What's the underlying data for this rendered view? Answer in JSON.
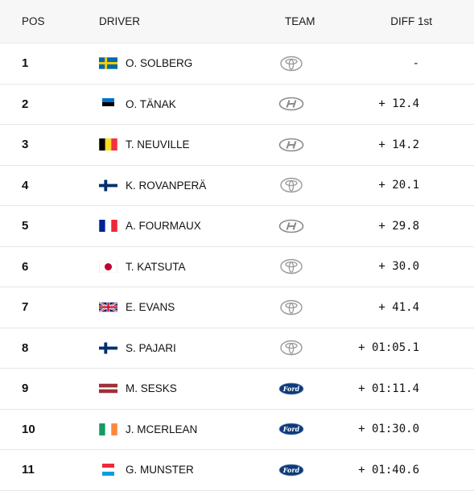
{
  "header": {
    "pos": "POS",
    "driver": "DRIVER",
    "team": "TEAM",
    "diff": "DIFF 1st"
  },
  "rows": [
    {
      "pos": "1",
      "driver": "O. SOLBERG",
      "flag": "sweden",
      "team": "toyota",
      "diff": "-"
    },
    {
      "pos": "2",
      "driver": "O. TÄNAK",
      "flag": "estonia",
      "team": "hyundai",
      "diff": "+ 12.4"
    },
    {
      "pos": "3",
      "driver": "T. NEUVILLE",
      "flag": "belgium",
      "team": "hyundai",
      "diff": "+ 14.2"
    },
    {
      "pos": "4",
      "driver": "K. ROVANPERÄ",
      "flag": "finland",
      "team": "toyota",
      "diff": "+ 20.1"
    },
    {
      "pos": "5",
      "driver": "A. FOURMAUX",
      "flag": "france",
      "team": "hyundai",
      "diff": "+ 29.8"
    },
    {
      "pos": "6",
      "driver": "T. KATSUTA",
      "flag": "japan",
      "team": "toyota",
      "diff": "+ 30.0"
    },
    {
      "pos": "7",
      "driver": "E. EVANS",
      "flag": "uk",
      "team": "toyota",
      "diff": "+ 41.4"
    },
    {
      "pos": "8",
      "driver": "S. PAJARI",
      "flag": "finland",
      "team": "toyota",
      "diff": "+ 01:05.1"
    },
    {
      "pos": "9",
      "driver": "M. SESKS",
      "flag": "latvia",
      "team": "ford",
      "diff": "+ 01:11.4"
    },
    {
      "pos": "10",
      "driver": "J. MCERLEAN",
      "flag": "ireland",
      "team": "ford",
      "diff": "+ 01:30.0"
    },
    {
      "pos": "11",
      "driver": "G. MUNSTER",
      "flag": "luxembourg",
      "team": "ford",
      "diff": "+ 01:40.6"
    }
  ]
}
